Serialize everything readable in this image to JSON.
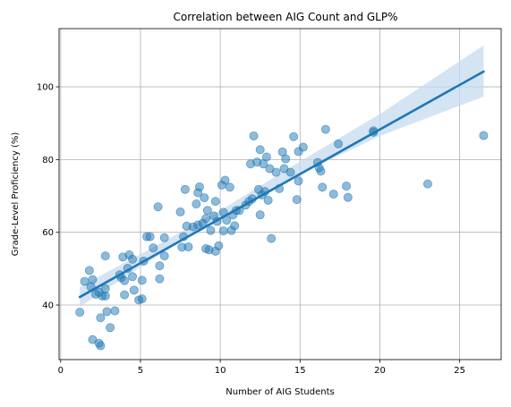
{
  "chart_data": {
    "type": "scatter",
    "title": "Correlation between AIG Count and GLP%",
    "xlabel": "Number of AIG Students",
    "ylabel": "Grade-Level Proficiency (%)",
    "xlim": [
      -0.1,
      27.6
    ],
    "ylim": [
      25,
      116
    ],
    "x_ticks": [
      0,
      5,
      10,
      15,
      20,
      25
    ],
    "y_ticks": [
      40,
      60,
      80,
      100
    ],
    "grid": true,
    "colors": {
      "points": "#1f77b4",
      "regression_line": "#1f77b4",
      "confidence_band": "#c6dbef"
    },
    "points": [
      [
        1.2,
        38
      ],
      [
        1.5,
        46.5
      ],
      [
        1.8,
        49.5
      ],
      [
        1.9,
        45
      ],
      [
        2.0,
        47
      ],
      [
        2.0,
        30.5
      ],
      [
        2.2,
        43
      ],
      [
        2.4,
        29.5
      ],
      [
        2.4,
        43.5
      ],
      [
        2.5,
        36.5
      ],
      [
        2.5,
        28.8
      ],
      [
        2.6,
        42.5
      ],
      [
        2.8,
        44.5
      ],
      [
        2.8,
        53.5
      ],
      [
        2.8,
        42.5
      ],
      [
        2.9,
        38.2
      ],
      [
        3.1,
        33.8
      ],
      [
        3.4,
        38.4
      ],
      [
        3.7,
        48.3
      ],
      [
        3.8,
        47.5
      ],
      [
        3.9,
        53.2
      ],
      [
        4.0,
        46.7
      ],
      [
        4.0,
        42.8
      ],
      [
        4.2,
        50.1
      ],
      [
        4.3,
        53.8
      ],
      [
        4.5,
        47.8
      ],
      [
        4.5,
        52.6
      ],
      [
        4.6,
        44.1
      ],
      [
        4.9,
        41.4
      ],
      [
        5.1,
        41.7
      ],
      [
        5.1,
        46.8
      ],
      [
        5.2,
        52.1
      ],
      [
        5.4,
        58.8
      ],
      [
        5.6,
        58.8
      ],
      [
        5.8,
        55.7
      ],
      [
        6.1,
        67.0
      ],
      [
        6.2,
        47.2
      ],
      [
        6.2,
        50.8
      ],
      [
        6.5,
        58.5
      ],
      [
        6.5,
        53.5
      ],
      [
        7.5,
        65.6
      ],
      [
        7.6,
        55.9
      ],
      [
        7.7,
        58.8
      ],
      [
        7.8,
        71.8
      ],
      [
        7.9,
        61.7
      ],
      [
        8.0,
        56.0
      ],
      [
        8.3,
        61.5
      ],
      [
        8.5,
        67.8
      ],
      [
        8.6,
        70.9
      ],
      [
        8.6,
        62.0
      ],
      [
        8.7,
        72.5
      ],
      [
        8.9,
        62.5
      ],
      [
        9.0,
        69.5
      ],
      [
        9.1,
        63.8
      ],
      [
        9.1,
        55.5
      ],
      [
        9.2,
        66.0
      ],
      [
        9.3,
        55.2
      ],
      [
        9.4,
        60.5
      ],
      [
        9.6,
        64.5
      ],
      [
        9.7,
        68.5
      ],
      [
        9.7,
        54.8
      ],
      [
        9.8,
        63.0
      ],
      [
        9.9,
        56.3
      ],
      [
        10.1,
        73.0
      ],
      [
        10.2,
        60.4
      ],
      [
        10.2,
        65.5
      ],
      [
        10.3,
        74.3
      ],
      [
        10.4,
        63.3
      ],
      [
        10.6,
        72.4
      ],
      [
        10.7,
        60.5
      ],
      [
        10.8,
        64.8
      ],
      [
        10.9,
        61.8
      ],
      [
        11.0,
        66.0
      ],
      [
        11.2,
        66.0
      ],
      [
        11.6,
        67.5
      ],
      [
        11.8,
        68.5
      ],
      [
        11.9,
        78.8
      ],
      [
        12.0,
        69.2
      ],
      [
        12.1,
        86.5
      ],
      [
        12.3,
        79.3
      ],
      [
        12.4,
        71.8
      ],
      [
        12.5,
        82.7
      ],
      [
        12.5,
        64.8
      ],
      [
        12.6,
        70.3
      ],
      [
        12.7,
        78.8
      ],
      [
        12.8,
        71.2
      ],
      [
        12.9,
        80.7
      ],
      [
        13.0,
        68.8
      ],
      [
        13.1,
        77.5
      ],
      [
        13.2,
        58.3
      ],
      [
        13.5,
        76.5
      ],
      [
        13.7,
        72.0
      ],
      [
        13.9,
        82.1
      ],
      [
        14.0,
        77.5
      ],
      [
        14.1,
        80.2
      ],
      [
        14.4,
        76.5
      ],
      [
        14.6,
        86.3
      ],
      [
        14.8,
        69.0
      ],
      [
        14.9,
        82.2
      ],
      [
        14.9,
        74.1
      ],
      [
        15.2,
        83.4
      ],
      [
        16.1,
        79.2
      ],
      [
        16.2,
        77.7
      ],
      [
        16.3,
        76.8
      ],
      [
        16.4,
        72.4
      ],
      [
        16.6,
        88.3
      ],
      [
        17.1,
        70.5
      ],
      [
        17.4,
        84.3
      ],
      [
        17.9,
        72.7
      ],
      [
        18.0,
        69.6
      ],
      [
        19.6,
        87.9
      ],
      [
        19.6,
        87.5
      ],
      [
        23.0,
        73.3
      ],
      [
        26.5,
        86.6
      ]
    ],
    "regression": {
      "x": [
        1.2,
        26.5
      ],
      "y": [
        42.2,
        104.2
      ]
    },
    "confidence_band": {
      "x": [
        1.2,
        5,
        10,
        15,
        20,
        26.5
      ],
      "lower": [
        39.5,
        50.5,
        64.0,
        76.0,
        86.5,
        97.3
      ],
      "upper": [
        45.0,
        54.0,
        66.0,
        79.5,
        92.5,
        111.4
      ]
    }
  }
}
